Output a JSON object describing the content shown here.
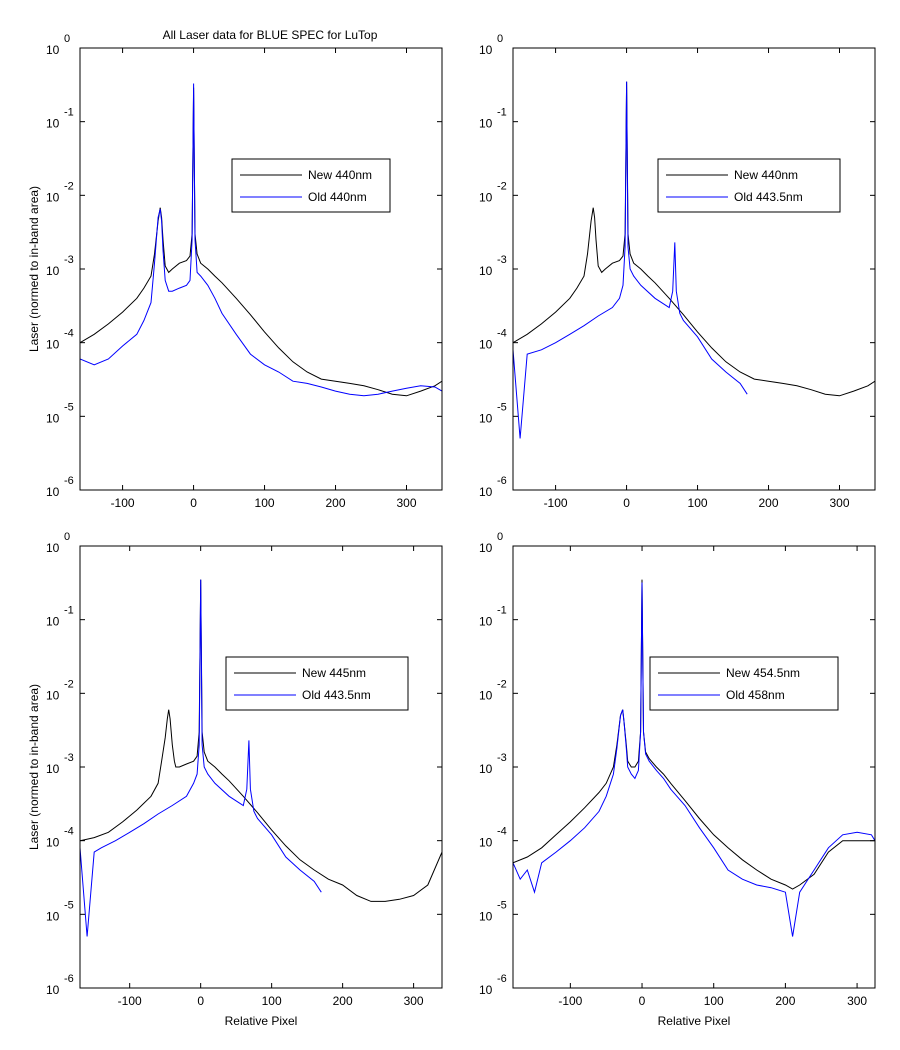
{
  "figure_title": "All Laser data for BLUE SPEC for LuTop",
  "colors": {
    "new": "#000000",
    "old": "#0000ff",
    "axes": "#000000",
    "background": "#ffffff"
  },
  "chart_data": [
    {
      "type": "line",
      "scale": "log-y",
      "grid": false,
      "legend_position": "right",
      "xlim": [
        -160,
        350
      ],
      "ylim": [
        1e-06,
        1
      ],
      "xticks": [
        -100,
        0,
        100,
        200,
        300
      ],
      "yticks": [
        {
          "base": "10",
          "exp": "0"
        },
        {
          "base": "10",
          "exp": "-1"
        },
        {
          "base": "10",
          "exp": "-2"
        },
        {
          "base": "10",
          "exp": "-3"
        },
        {
          "base": "10",
          "exp": "-4"
        },
        {
          "base": "10",
          "exp": "-5"
        },
        {
          "base": "10",
          "exp": "-6"
        }
      ],
      "xlabel": "",
      "ylabel": "Laser (normed to in-band area)",
      "series": [
        {
          "name": "New 440nm",
          "color": "#000000",
          "x": [
            -160,
            -140,
            -120,
            -100,
            -80,
            -70,
            -60,
            -55,
            -50,
            -47,
            -45,
            -43,
            -40,
            -35,
            -30,
            -20,
            -10,
            -5,
            -2,
            0,
            2,
            5,
            10,
            20,
            30,
            40,
            60,
            80,
            100,
            120,
            140,
            160,
            180,
            200,
            220,
            240,
            260,
            280,
            300,
            320,
            340,
            350
          ],
          "y": [
            0.0001,
            0.00013,
            0.00018,
            0.00026,
            0.0004,
            0.00055,
            0.0008,
            0.0016,
            0.0045,
            0.0068,
            0.005,
            0.0025,
            0.0011,
            0.0009,
            0.001,
            0.0012,
            0.0013,
            0.0015,
            0.003,
            0.29,
            0.003,
            0.0016,
            0.0012,
            0.001,
            0.0008,
            0.00065,
            0.0004,
            0.00024,
            0.00014,
            8.5e-05,
            5.5e-05,
            4e-05,
            3.2e-05,
            3e-05,
            2.8e-05,
            2.6e-05,
            2.3e-05,
            2e-05,
            1.9e-05,
            2.2e-05,
            2.6e-05,
            3e-05
          ]
        },
        {
          "name": "Old 440nm",
          "color": "#0000ff",
          "x": [
            -160,
            -140,
            -120,
            -100,
            -80,
            -70,
            -60,
            -55,
            -50,
            -47,
            -45,
            -43,
            -40,
            -35,
            -30,
            -20,
            -10,
            -5,
            -2,
            0,
            2,
            5,
            10,
            20,
            30,
            40,
            60,
            80,
            100,
            120,
            140,
            160,
            180,
            200,
            220,
            240,
            260,
            280,
            300,
            320,
            340,
            350
          ],
          "y": [
            6e-05,
            5e-05,
            6e-05,
            9e-05,
            0.00013,
            0.0002,
            0.00035,
            0.0012,
            0.005,
            0.0065,
            0.0045,
            0.0018,
            0.0007,
            0.0005,
            0.0005,
            0.00055,
            0.0006,
            0.0007,
            0.0025,
            0.33,
            0.0025,
            0.0009,
            0.0008,
            0.0006,
            0.0004,
            0.00025,
            0.00013,
            7e-05,
            5e-05,
            4e-05,
            3e-05,
            2.8e-05,
            2.5e-05,
            2.2e-05,
            2e-05,
            1.9e-05,
            2e-05,
            2.2e-05,
            2.4e-05,
            2.6e-05,
            2.5e-05,
            2.2e-05
          ]
        }
      ]
    },
    {
      "type": "line",
      "scale": "log-y",
      "grid": false,
      "legend_position": "right",
      "xlim": [
        -160,
        350
      ],
      "ylim": [
        1e-06,
        1
      ],
      "xticks": [
        -100,
        0,
        100,
        200,
        300
      ],
      "yticks": [
        {
          "base": "10",
          "exp": "0"
        },
        {
          "base": "10",
          "exp": "-1"
        },
        {
          "base": "10",
          "exp": "-2"
        },
        {
          "base": "10",
          "exp": "-3"
        },
        {
          "base": "10",
          "exp": "-4"
        },
        {
          "base": "10",
          "exp": "-5"
        },
        {
          "base": "10",
          "exp": "-6"
        }
      ],
      "xlabel": "",
      "ylabel": "",
      "series": [
        {
          "name": "New 440nm",
          "color": "#000000",
          "x": [
            -160,
            -140,
            -120,
            -100,
            -80,
            -70,
            -60,
            -55,
            -50,
            -47,
            -45,
            -43,
            -40,
            -35,
            -30,
            -20,
            -10,
            -5,
            -2,
            0,
            2,
            5,
            10,
            20,
            30,
            40,
            60,
            80,
            100,
            120,
            140,
            160,
            180,
            200,
            220,
            240,
            260,
            280,
            300,
            320,
            340,
            350
          ],
          "y": [
            0.0001,
            0.00013,
            0.00018,
            0.00026,
            0.0004,
            0.00055,
            0.0008,
            0.0016,
            0.0045,
            0.0068,
            0.005,
            0.0025,
            0.0011,
            0.0009,
            0.001,
            0.0012,
            0.0013,
            0.0015,
            0.003,
            0.35,
            0.003,
            0.0016,
            0.0012,
            0.001,
            0.0008,
            0.00065,
            0.0004,
            0.00024,
            0.00014,
            8.5e-05,
            5.5e-05,
            4e-05,
            3.2e-05,
            3e-05,
            2.8e-05,
            2.6e-05,
            2.3e-05,
            2e-05,
            1.9e-05,
            2.2e-05,
            2.6e-05,
            3e-05
          ]
        },
        {
          "name": "Old 443.5nm",
          "color": "#0000ff",
          "x": [
            -160,
            -150,
            -140,
            -120,
            -100,
            -80,
            -60,
            -40,
            -20,
            -10,
            -5,
            -2,
            0,
            2,
            5,
            10,
            20,
            40,
            60,
            65,
            68,
            70,
            75,
            80,
            100,
            120,
            140,
            160,
            170
          ],
          "y": [
            8e-05,
            5e-06,
            7e-05,
            8e-05,
            0.0001,
            0.00013,
            0.00017,
            0.00023,
            0.0003,
            0.0004,
            0.0006,
            0.002,
            0.35,
            0.002,
            0.001,
            0.0008,
            0.0006,
            0.0004,
            0.0003,
            0.0005,
            0.0023,
            0.0005,
            0.00025,
            0.0002,
            0.00012,
            6e-05,
            4e-05,
            2.8e-05,
            2e-05
          ]
        }
      ]
    },
    {
      "type": "line",
      "scale": "log-y",
      "grid": false,
      "legend_position": "right",
      "xlim": [
        -170,
        340
      ],
      "ylim": [
        1e-06,
        1
      ],
      "xticks": [
        -100,
        0,
        100,
        200,
        300
      ],
      "yticks": [
        {
          "base": "10",
          "exp": "0"
        },
        {
          "base": "10",
          "exp": "-1"
        },
        {
          "base": "10",
          "exp": "-2"
        },
        {
          "base": "10",
          "exp": "-3"
        },
        {
          "base": "10",
          "exp": "-4"
        },
        {
          "base": "10",
          "exp": "-5"
        },
        {
          "base": "10",
          "exp": "-6"
        }
      ],
      "xlabel": "Relative Pixel",
      "ylabel": "Laser (normed to in-band area)",
      "series": [
        {
          "name": "New 445nm",
          "color": "#000000",
          "x": [
            -170,
            -150,
            -130,
            -110,
            -90,
            -70,
            -60,
            -55,
            -50,
            -47,
            -45,
            -43,
            -40,
            -37,
            -35,
            -30,
            -20,
            -10,
            -5,
            -2,
            0,
            2,
            5,
            10,
            20,
            30,
            40,
            60,
            80,
            100,
            120,
            140,
            160,
            180,
            200,
            220,
            240,
            260,
            280,
            300,
            320,
            340
          ],
          "y": [
            0.0001,
            0.00011,
            0.00013,
            0.00018,
            0.00026,
            0.0004,
            0.0006,
            0.0012,
            0.0025,
            0.0045,
            0.006,
            0.0045,
            0.002,
            0.0012,
            0.001,
            0.001,
            0.0011,
            0.0012,
            0.0014,
            0.003,
            0.35,
            0.003,
            0.0016,
            0.0012,
            0.001,
            0.0008,
            0.00065,
            0.0004,
            0.00024,
            0.00014,
            8.5e-05,
            5.5e-05,
            4e-05,
            3e-05,
            2.5e-05,
            1.8e-05,
            1.5e-05,
            1.5e-05,
            1.6e-05,
            1.8e-05,
            2.5e-05,
            7e-05
          ]
        },
        {
          "name": "Old 443.5nm",
          "color": "#0000ff",
          "x": [
            -170,
            -160,
            -150,
            -140,
            -120,
            -100,
            -80,
            -60,
            -40,
            -20,
            -10,
            -5,
            -2,
            0,
            2,
            5,
            10,
            20,
            40,
            60,
            65,
            68,
            70,
            75,
            80,
            100,
            120,
            140,
            160,
            170
          ],
          "y": [
            8e-05,
            5e-06,
            7e-05,
            8e-05,
            0.0001,
            0.00013,
            0.00017,
            0.00023,
            0.0003,
            0.0004,
            0.0006,
            0.0008,
            0.002,
            0.35,
            0.002,
            0.001,
            0.0008,
            0.0006,
            0.0004,
            0.0003,
            0.0005,
            0.0023,
            0.0005,
            0.00025,
            0.0002,
            0.00012,
            6e-05,
            4e-05,
            2.8e-05,
            2e-05
          ]
        }
      ]
    },
    {
      "type": "line",
      "scale": "log-y",
      "grid": false,
      "legend_position": "right",
      "xlim": [
        -180,
        325
      ],
      "ylim": [
        1e-06,
        1
      ],
      "xticks": [
        -100,
        0,
        100,
        200,
        300
      ],
      "yticks": [
        {
          "base": "10",
          "exp": "0"
        },
        {
          "base": "10",
          "exp": "-1"
        },
        {
          "base": "10",
          "exp": "-2"
        },
        {
          "base": "10",
          "exp": "-3"
        },
        {
          "base": "10",
          "exp": "-4"
        },
        {
          "base": "10",
          "exp": "-5"
        },
        {
          "base": "10",
          "exp": "-6"
        }
      ],
      "xlabel": "Relative Pixel",
      "ylabel": "",
      "series": [
        {
          "name": "New 454.5nm",
          "color": "#000000",
          "x": [
            -180,
            -160,
            -140,
            -120,
            -100,
            -80,
            -60,
            -50,
            -40,
            -35,
            -30,
            -27,
            -25,
            -22,
            -20,
            -15,
            -10,
            -5,
            -2,
            0,
            2,
            5,
            10,
            20,
            30,
            40,
            60,
            80,
            100,
            120,
            140,
            160,
            180,
            200,
            210,
            220,
            240,
            260,
            280,
            300,
            320,
            325
          ],
          "y": [
            5e-05,
            6e-05,
            8e-05,
            0.00012,
            0.00018,
            0.00028,
            0.00045,
            0.0006,
            0.001,
            0.002,
            0.005,
            0.006,
            0.004,
            0.002,
            0.0012,
            0.001,
            0.001,
            0.0012,
            0.003,
            0.35,
            0.003,
            0.0016,
            0.0013,
            0.001,
            0.0008,
            0.0006,
            0.00035,
            0.0002,
            0.00012,
            8e-05,
            5.5e-05,
            4e-05,
            3e-05,
            2.5e-05,
            2.2e-05,
            2.5e-05,
            3.5e-05,
            7e-05,
            0.0001,
            0.0001,
            0.0001,
            0.0001
          ]
        },
        {
          "name": "Old 458nm",
          "color": "#0000ff",
          "x": [
            -180,
            -170,
            -160,
            -150,
            -140,
            -120,
            -100,
            -80,
            -60,
            -50,
            -40,
            -35,
            -30,
            -27,
            -25,
            -22,
            -20,
            -15,
            -10,
            -5,
            -2,
            0,
            2,
            5,
            10,
            20,
            30,
            40,
            60,
            80,
            100,
            120,
            140,
            160,
            180,
            200,
            210,
            220,
            240,
            260,
            280,
            300,
            320,
            325
          ],
          "y": [
            5e-05,
            3e-05,
            4e-05,
            2e-05,
            5e-05,
            7e-05,
            0.0001,
            0.00015,
            0.00025,
            0.0004,
            0.0008,
            0.0018,
            0.005,
            0.006,
            0.004,
            0.0018,
            0.001,
            0.0008,
            0.0007,
            0.0009,
            0.003,
            0.32,
            0.003,
            0.0015,
            0.0012,
            0.0009,
            0.0007,
            0.0005,
            0.0003,
            0.00015,
            8e-05,
            4e-05,
            3e-05,
            2.5e-05,
            2.3e-05,
            2e-05,
            5e-06,
            2e-05,
            4e-05,
            8e-05,
            0.00012,
            0.00013,
            0.00012,
            0.0001
          ]
        }
      ]
    }
  ]
}
